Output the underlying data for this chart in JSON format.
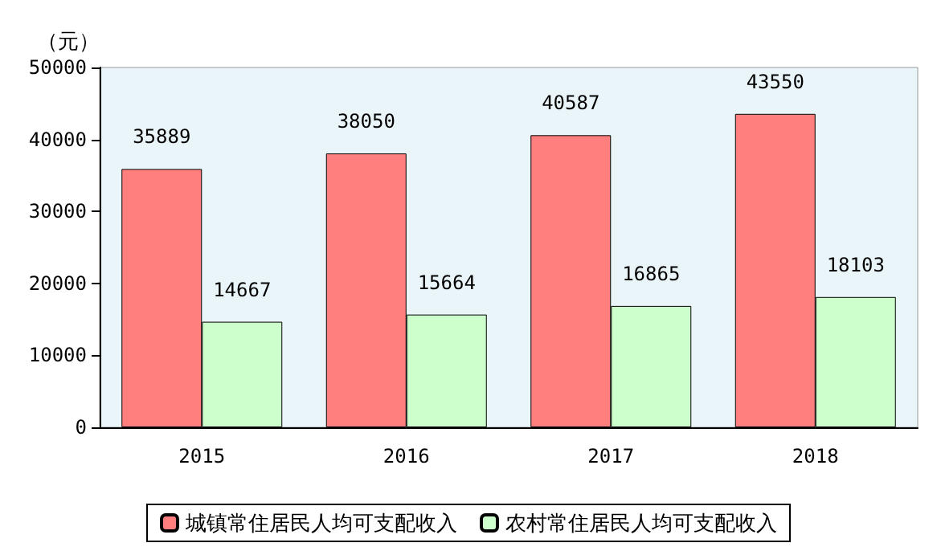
{
  "chart_data": {
    "type": "bar",
    "ylabel": "（元）",
    "categories": [
      "2015",
      "2016",
      "2017",
      "2018"
    ],
    "series": [
      {
        "name": "城镇常住居民人均可支配收入",
        "color": "#ff7f7f",
        "values": [
          35889,
          38050,
          40587,
          43550
        ]
      },
      {
        "name": "农村常住居民人均可支配收入",
        "color": "#ccffcc",
        "values": [
          14667,
          15664,
          16865,
          18103
        ]
      }
    ],
    "ylim": [
      0,
      50000
    ],
    "yticks": [
      0,
      10000,
      20000,
      30000,
      40000,
      50000
    ],
    "data_labels": true,
    "grid": false,
    "legend": "bottom"
  }
}
